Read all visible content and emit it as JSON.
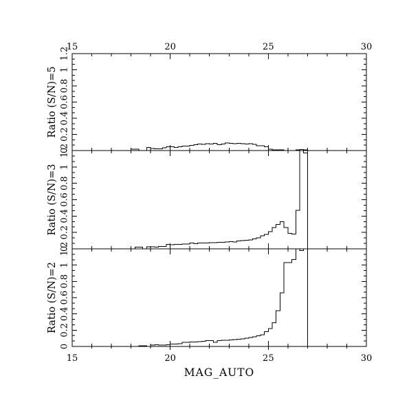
{
  "figure": {
    "background": "#ffffff",
    "line_color": "#000000"
  },
  "chart_data": {
    "type": "bar",
    "subtype": "step-histogram-multipanel",
    "xlabel": "MAG_AUTO",
    "xlim": [
      15,
      30
    ],
    "x_major_ticks": [
      15,
      20,
      25,
      30
    ],
    "x_tick_labels": [
      "15",
      "20",
      "25",
      "30"
    ],
    "x_minor_step": 1,
    "ylim": [
      0,
      1.2
    ],
    "y_major_ticks": [
      0.2,
      0.4,
      0.6,
      0.8,
      1.0
    ],
    "y_tick_label_values": [
      0,
      0.2,
      0.4,
      0.6,
      0.8,
      1.0,
      1.2
    ],
    "y_tick_labels": [
      "0",
      "0.2",
      "0.4",
      "0.6",
      "0.8",
      "1",
      "1.2"
    ],
    "bin_start": 18.0,
    "bin_width": 0.2,
    "data_end": 27.0,
    "clip_max": 1.2,
    "panels": [
      {
        "ylabel": "Ratio (S/N)=5",
        "values": [
          0.017,
          0.017,
          0,
          0,
          0.04,
          0.026,
          0.02,
          0.02,
          0.032,
          0.046,
          0.046,
          0.04,
          0.045,
          0.056,
          0.056,
          0.065,
          0.072,
          0.079,
          0.075,
          0.085,
          0.08,
          0.089,
          0.072,
          0.08,
          0.094,
          0.09,
          0.083,
          0.089,
          0.085,
          0.08,
          0.085,
          0.075,
          0.061,
          0.061,
          0.047,
          0.017,
          0.01,
          0.008,
          0.01,
          0,
          0,
          0,
          0.008,
          0.012,
          0.008
        ]
      },
      {
        "ylabel": "Ratio (S/N)=3",
        "values": [
          0,
          0.02,
          0.02,
          0,
          0.025,
          0.025,
          0.02,
          0.03,
          0.03,
          0.055,
          0.05,
          0.055,
          0.055,
          0.06,
          0.06,
          0.07,
          0.065,
          0.07,
          0.07,
          0.07,
          0.075,
          0.075,
          0.08,
          0.08,
          0.085,
          0.09,
          0.085,
          0.095,
          0.1,
          0.105,
          0.11,
          0.12,
          0.136,
          0.16,
          0.178,
          0.21,
          0.26,
          0.3,
          0.33,
          0.26,
          0.19,
          0.18,
          0.47,
          1.3,
          1.17
        ]
      },
      {
        "ylabel": "Ratio (S/N)=2",
        "values": [
          0,
          0,
          0.008,
          0.008,
          0,
          0.015,
          0.02,
          0.015,
          0.015,
          0.022,
          0.028,
          0.028,
          0.035,
          0.05,
          0.05,
          0.055,
          0.057,
          0.06,
          0.065,
          0.07,
          0.07,
          0.05,
          0.07,
          0.076,
          0.076,
          0.08,
          0.085,
          0.09,
          0.095,
          0.1,
          0.11,
          0.12,
          0.13,
          0.145,
          0.18,
          0.22,
          0.29,
          0.44,
          0.66,
          1.03,
          1.03,
          1.07,
          1.3,
          1.18,
          1.3
        ]
      }
    ]
  }
}
